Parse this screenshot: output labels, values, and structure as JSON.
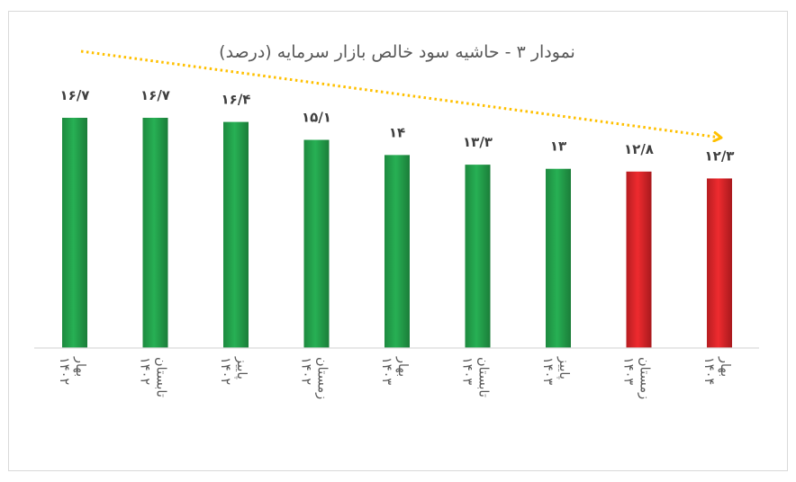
{
  "chart_data": {
    "type": "bar",
    "title": "نمودار ۳ - حاشیه سود خالص بازار سرمایه (درصد)",
    "categories": [
      [
        "بهار",
        "۱۴۰۲"
      ],
      [
        "تابستان",
        "۱۴۰۲"
      ],
      [
        "پاییز",
        "۱۴۰۲"
      ],
      [
        "زمستان",
        "۱۴۰۲"
      ],
      [
        "بهار",
        "۱۴۰۳"
      ],
      [
        "تابستان",
        "۱۴۰۳"
      ],
      [
        "پاییز",
        "۱۴۰۳"
      ],
      [
        "زمستان",
        "۱۴۰۳"
      ],
      [
        "بهار",
        "۱۴۰۴"
      ]
    ],
    "values": [
      16.7,
      16.7,
      16.4,
      15.1,
      14,
      13.3,
      13,
      12.8,
      12.3
    ],
    "value_labels": [
      "۱۶/۷",
      "۱۶/۷",
      "۱۶/۴",
      "۱۵/۱",
      "۱۴",
      "۱۳/۳",
      "۱۳",
      "۱۲/۸",
      "۱۲/۳"
    ],
    "bar_colors": [
      "#22a04a",
      "#22a04a",
      "#22a04a",
      "#22a04a",
      "#22a04a",
      "#22a04a",
      "#22a04a",
      "#e0262b",
      "#e0262b"
    ],
    "trend_arrow_color": "#ffc000",
    "axis_color": "#d9d9d9",
    "ylim": [
      0,
      16.7
    ],
    "grid": false,
    "legend": "none"
  }
}
